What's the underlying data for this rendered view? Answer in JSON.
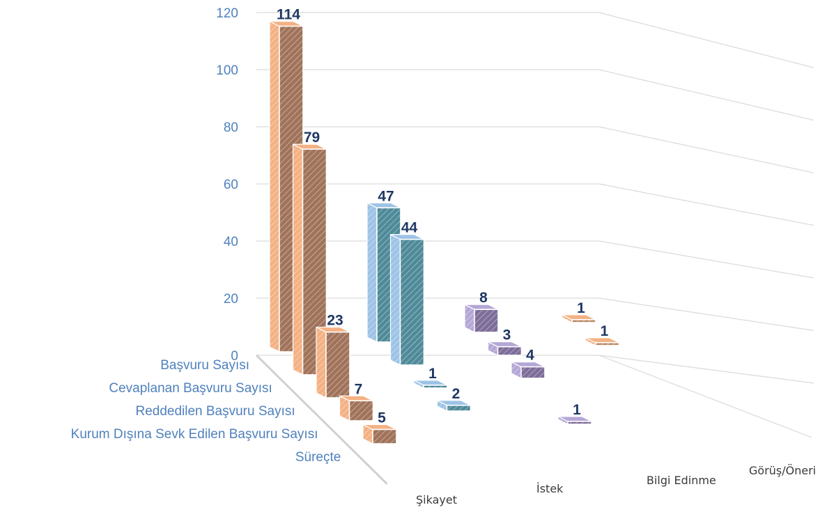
{
  "chart_data": {
    "type": "bar",
    "variant": "3d-column",
    "title": "",
    "xlabel": "",
    "ylabel": "",
    "ylim": [
      0,
      120
    ],
    "yticks": [
      "0",
      "20",
      "40",
      "60",
      "80",
      "100",
      "120"
    ],
    "grid": true,
    "legend": "none",
    "categories": [
      "Şikayet",
      "İstek",
      "Bilgi Edinme",
      "Görüş/Öneri"
    ],
    "category_colors": [
      "#f4b183",
      "#9dc3e6",
      "#b4a7d6",
      "#f4b183"
    ],
    "category_dark_colors": [
      "#a0735a",
      "#4f8a99",
      "#7d6d99",
      "#b88560"
    ],
    "series": [
      {
        "name": "Başvuru Sayısı",
        "values": [
          114,
          47,
          8,
          1
        ]
      },
      {
        "name": "Cevaplanan Başvuru Sayısı",
        "values": [
          79,
          44,
          3,
          1
        ]
      },
      {
        "name": "Reddedilen Başvuru Sayısı",
        "values": [
          23,
          1,
          4,
          null
        ]
      },
      {
        "name": "Kurum Dışına Sevk Edilen Başvuru Sayısı",
        "values": [
          7,
          2,
          null,
          null
        ]
      },
      {
        "name": "Süreçte",
        "values": [
          5,
          null,
          1,
          null
        ]
      }
    ]
  }
}
